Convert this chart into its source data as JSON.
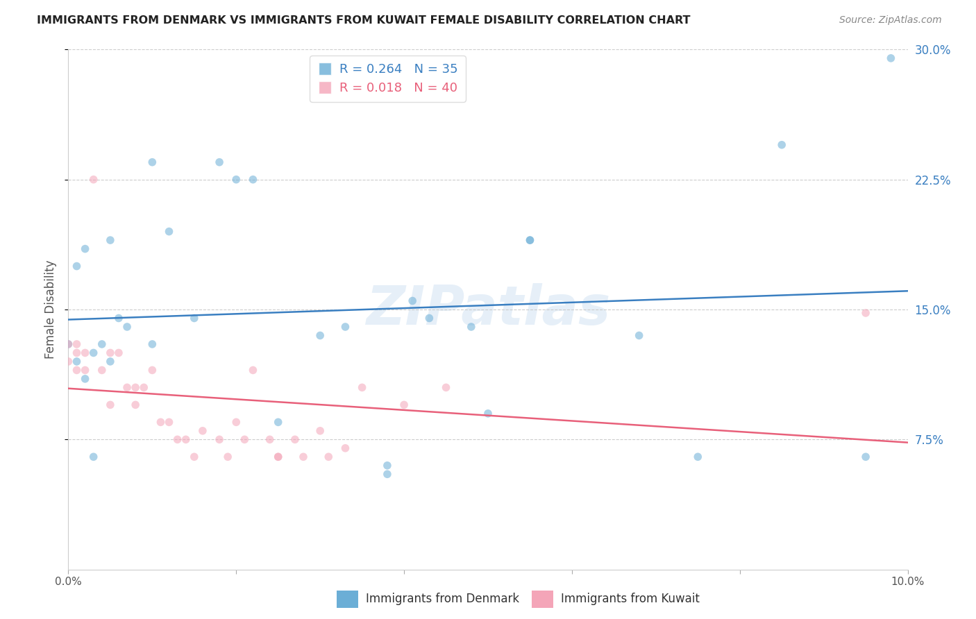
{
  "title": "IMMIGRANTS FROM DENMARK VS IMMIGRANTS FROM KUWAIT FEMALE DISABILITY CORRELATION CHART",
  "source": "Source: ZipAtlas.com",
  "ylabel": "Female Disability",
  "legend_label1": "Immigrants from Denmark",
  "legend_label2": "Immigrants from Kuwait",
  "R1": 0.264,
  "N1": 35,
  "R2": 0.018,
  "N2": 40,
  "xlim": [
    0.0,
    0.1
  ],
  "ylim": [
    0.0,
    0.3
  ],
  "yticks_right": [
    0.075,
    0.15,
    0.225,
    0.3
  ],
  "xticks": [
    0.0,
    0.02,
    0.04,
    0.06,
    0.08,
    0.1
  ],
  "color_denmark": "#6baed6",
  "color_kuwait": "#f4a5b8",
  "color_line_denmark": "#3a7fc1",
  "color_line_kuwait": "#e8607a",
  "denmark_x": [
    0.0,
    0.001,
    0.002,
    0.003,
    0.004,
    0.005,
    0.006,
    0.007,
    0.01,
    0.012,
    0.015,
    0.018,
    0.02,
    0.022,
    0.03,
    0.033,
    0.038,
    0.038,
    0.041,
    0.043,
    0.048,
    0.05,
    0.055,
    0.068,
    0.075,
    0.085,
    0.095,
    0.098,
    0.001,
    0.002,
    0.003,
    0.005,
    0.01,
    0.025,
    0.055
  ],
  "denmark_y": [
    0.13,
    0.175,
    0.185,
    0.125,
    0.13,
    0.19,
    0.145,
    0.14,
    0.235,
    0.195,
    0.145,
    0.235,
    0.225,
    0.225,
    0.135,
    0.14,
    0.055,
    0.06,
    0.155,
    0.145,
    0.14,
    0.09,
    0.19,
    0.135,
    0.065,
    0.245,
    0.065,
    0.295,
    0.12,
    0.11,
    0.065,
    0.12,
    0.13,
    0.085,
    0.19
  ],
  "kuwait_x": [
    0.0,
    0.0,
    0.001,
    0.001,
    0.001,
    0.002,
    0.002,
    0.003,
    0.004,
    0.005,
    0.005,
    0.006,
    0.007,
    0.008,
    0.008,
    0.009,
    0.01,
    0.011,
    0.012,
    0.013,
    0.014,
    0.015,
    0.016,
    0.018,
    0.019,
    0.02,
    0.021,
    0.022,
    0.024,
    0.025,
    0.025,
    0.027,
    0.028,
    0.03,
    0.031,
    0.033,
    0.035,
    0.04,
    0.045,
    0.095
  ],
  "kuwait_y": [
    0.13,
    0.12,
    0.13,
    0.125,
    0.115,
    0.125,
    0.115,
    0.225,
    0.115,
    0.125,
    0.095,
    0.125,
    0.105,
    0.095,
    0.105,
    0.105,
    0.115,
    0.085,
    0.085,
    0.075,
    0.075,
    0.065,
    0.08,
    0.075,
    0.065,
    0.085,
    0.075,
    0.115,
    0.075,
    0.065,
    0.065,
    0.075,
    0.065,
    0.08,
    0.065,
    0.07,
    0.105,
    0.095,
    0.105,
    0.148
  ],
  "background_color": "#ffffff",
  "grid_color": "#cccccc",
  "watermark": "ZIPatlas",
  "marker_size": 70
}
